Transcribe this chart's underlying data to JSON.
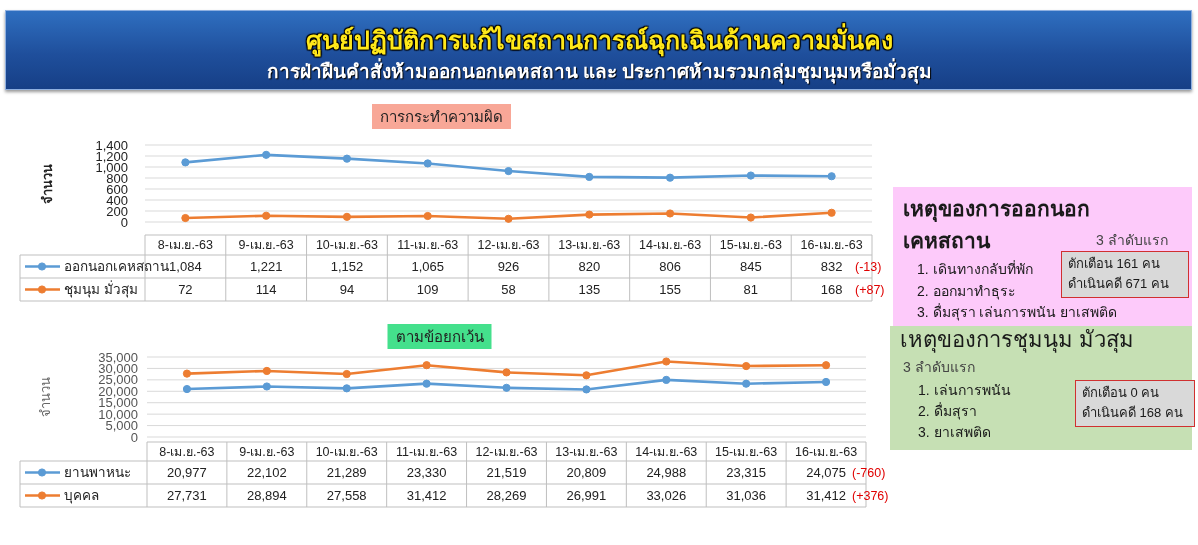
{
  "chart_data": [
    {
      "type": "other",
      "title": "ศูนย์ปฏิบัติการแก้ไขสถานการณ์ฉุกเฉินด้านความมั่นคง",
      "subtitle": "การฝ่าฝืนคำสั่งห้ามออกนอกเคหสถาน และ ประกาศห้ามรวมกลุ่มชุมนุมหรือมั่วสุม"
    },
    {
      "type": "line",
      "title": "การกระทำความผิด",
      "ylabel": "จำนวน",
      "categories": [
        "8-เม.ย.-63",
        "9-เม.ย.-63",
        "10-เม.ย.-63",
        "11-เม.ย.-63",
        "12-เม.ย.-63",
        "13-เม.ย.-63",
        "14-เม.ย.-63",
        "15-เม.ย.-63",
        "16-เม.ย.-63"
      ],
      "series": [
        {
          "name": "ออกนอกเคหสถาน",
          "color": "#5b9bd5",
          "values": [
            1084,
            1221,
            1152,
            1065,
            926,
            820,
            806,
            845,
            832
          ],
          "value_labels": [
            "1,084",
            "1,221",
            "1,152",
            "1,065",
            "926",
            "820",
            "806",
            "845",
            "832"
          ]
        },
        {
          "name": "ชุมนุม มั่วสุม",
          "color": "#ed7d31",
          "values": [
            72,
            114,
            94,
            109,
            58,
            135,
            155,
            81,
            168
          ],
          "value_labels": [
            "72",
            "114",
            "94",
            "109",
            "58",
            "135",
            "155",
            "81",
            "168"
          ]
        }
      ],
      "ylim": [
        0,
        1400
      ],
      "yticks": [
        0,
        200,
        400,
        600,
        800,
        {
          "value": 1000,
          "label": "1,000"
        },
        {
          "value": 1200,
          "label": "1,200"
        },
        {
          "value": 1400,
          "label": "1,400"
        }
      ],
      "grid": "y",
      "legend": "bottom",
      "marker": "circle",
      "line_style": "solid",
      "annotations": [
        "(-13)",
        "(+87)"
      ]
    },
    {
      "type": "line",
      "title": "ตามข้อยกเว้น",
      "ylabel": "จำนวน",
      "categories": [
        "8-เม.ย.-63",
        "9-เม.ย.-63",
        "10-เม.ย.-63",
        "11-เม.ย.-63",
        "12-เม.ย.-63",
        "13-เม.ย.-63",
        "14-เม.ย.-63",
        "15-เม.ย.-63",
        "16-เม.ย.-63"
      ],
      "series": [
        {
          "name": "ยานพาหนะ",
          "color": "#5b9bd5",
          "values": [
            20977,
            22102,
            21289,
            23330,
            21519,
            20809,
            24988,
            23315,
            24075
          ],
          "value_labels": [
            "20,977",
            "22,102",
            "21,289",
            "23,330",
            "21,519",
            "20,809",
            "24,988",
            "23,315",
            "24,075"
          ]
        },
        {
          "name": "บุคคล",
          "color": "#ed7d31",
          "values": [
            27731,
            28894,
            27558,
            31412,
            28269,
            26991,
            33026,
            31036,
            31412
          ],
          "value_labels": [
            "27,731",
            "28,894",
            "27,558",
            "31,412",
            "28,269",
            "26,991",
            "33,026",
            "31,036",
            "31,412"
          ]
        }
      ],
      "ylim": [
        0,
        35000
      ],
      "yticks": [
        0,
        {
          "value": 5000,
          "label": "5,000"
        },
        {
          "value": 10000,
          "label": "10,000"
        },
        {
          "value": 15000,
          "label": "15,000"
        },
        {
          "value": 20000,
          "label": "20,000"
        },
        {
          "value": 25000,
          "label": "25,000"
        },
        {
          "value": 30000,
          "label": "30,000"
        },
        {
          "value": 35000,
          "label": "35,000"
        }
      ],
      "grid": "y",
      "legend": "bottom",
      "marker": "circle",
      "line_style": "solid",
      "annotations": [
        "(-760)",
        "(+376)"
      ]
    },
    {
      "type": "other",
      "title": "เหตุของการออกนอกเคหสถาน",
      "subtitle": "3 ลำดับแรก",
      "annotations": [
        "1. เดินทางกลับที่พัก",
        "2. ออกมาทำธุระ",
        "3. ดื่มสุรา เล่นการพนัน ยาเสพติด",
        "ตักเตือน 161 คน",
        "ดำเนินคดี 671 คน"
      ]
    },
    {
      "type": "other",
      "title": "เหตุของการชุมนุม มัวสุม",
      "subtitle": "3 ลำดับแรก",
      "annotations": [
        "1. เล่นการพนัน",
        "2. ดื่มสุรา",
        "3. ยาเสพติด",
        "ตักเตือน 0 คน",
        "ดำเนินคดี 168 คน"
      ]
    }
  ]
}
